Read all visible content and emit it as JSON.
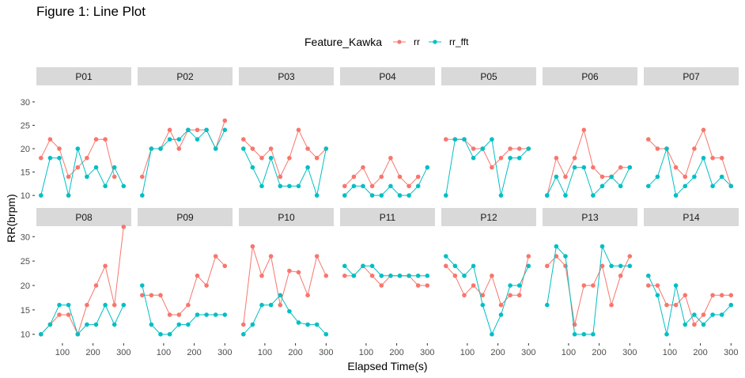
{
  "title": "Figure 1: Line Plot",
  "chart_data": {
    "type": "line",
    "title": "Figure 1: Line Plot",
    "xlabel": "Elapsed Time(s)",
    "ylabel": "RR(brpm)",
    "xlim": [
      15,
      325
    ],
    "ylim": [
      8.5,
      31.5
    ],
    "xticks": [
      100,
      200,
      300
    ],
    "yticks": [
      10,
      15,
      20,
      25,
      30
    ],
    "grid": false,
    "legend": {
      "title": "Feature_Kawka",
      "placement": "top",
      "entries": [
        {
          "name": "rr",
          "color": "#F8766D"
        },
        {
          "name": "rr_fft",
          "color": "#00BFC4"
        }
      ]
    },
    "x": [
      30,
      60,
      90,
      120,
      150,
      180,
      210,
      240,
      270,
      300
    ],
    "panels": [
      {
        "name": "P01",
        "series": [
          {
            "name": "rr",
            "values": [
              18,
              22,
              20,
              14,
              16,
              18,
              22,
              22,
              14,
              null
            ]
          },
          {
            "name": "rr_fft",
            "values": [
              10,
              18,
              18,
              10,
              20,
              14,
              16,
              12,
              16,
              12
            ]
          }
        ]
      },
      {
        "name": "P02",
        "series": [
          {
            "name": "rr",
            "values": [
              14,
              20,
              20,
              24,
              20,
              24,
              24,
              24,
              20,
              26
            ]
          },
          {
            "name": "rr_fft",
            "values": [
              10,
              20,
              20,
              22,
              22,
              24,
              22,
              24,
              20,
              24
            ]
          }
        ]
      },
      {
        "name": "P03",
        "series": [
          {
            "name": "rr",
            "values": [
              22,
              20,
              18,
              20,
              14,
              18,
              24,
              20,
              18,
              20
            ]
          },
          {
            "name": "rr_fft",
            "values": [
              20,
              16,
              12,
              18,
              12,
              12,
              12,
              16,
              10,
              20
            ]
          }
        ]
      },
      {
        "name": "P04",
        "series": [
          {
            "name": "rr",
            "values": [
              12,
              14,
              16,
              12,
              14,
              18,
              14,
              12,
              14,
              null
            ]
          },
          {
            "name": "rr_fft",
            "values": [
              10,
              12,
              12,
              10,
              10,
              12,
              10,
              10,
              12,
              16
            ]
          }
        ]
      },
      {
        "name": "P05",
        "series": [
          {
            "name": "rr",
            "values": [
              22,
              22,
              22,
              20,
              20,
              16,
              18,
              20,
              20,
              20
            ]
          },
          {
            "name": "rr_fft",
            "values": [
              10,
              22,
              22,
              18,
              20,
              22,
              10,
              18,
              18,
              20
            ]
          }
        ]
      },
      {
        "name": "P06",
        "series": [
          {
            "name": "rr",
            "values": [
              10,
              18,
              14,
              18,
              24,
              16,
              14,
              14,
              16,
              16
            ]
          },
          {
            "name": "rr_fft",
            "values": [
              10,
              14,
              10,
              16,
              16,
              10,
              12,
              14,
              12,
              16
            ]
          }
        ]
      },
      {
        "name": "P07",
        "series": [
          {
            "name": "rr",
            "values": [
              22,
              20,
              20,
              16,
              14,
              20,
              24,
              18,
              18,
              12
            ]
          },
          {
            "name": "rr_fft",
            "values": [
              12,
              14,
              20,
              10,
              12,
              14,
              18,
              12,
              14,
              12
            ]
          }
        ]
      },
      {
        "name": "P08",
        "series": [
          {
            "name": "rr",
            "values": [
              10,
              12,
              14,
              14,
              10,
              16,
              20,
              24,
              16,
              32
            ]
          },
          {
            "name": "rr_fft",
            "values": [
              10,
              12,
              16,
              16,
              10,
              12,
              12,
              16,
              12,
              16
            ]
          }
        ]
      },
      {
        "name": "P09",
        "series": [
          {
            "name": "rr",
            "values": [
              18,
              18,
              18,
              14,
              14,
              16,
              22,
              20,
              26,
              24
            ]
          },
          {
            "name": "rr_fft",
            "values": [
              20,
              12,
              10,
              10,
              12,
              12,
              14,
              14,
              14,
              14
            ]
          }
        ]
      },
      {
        "name": "P10",
        "series": [
          {
            "name": "rr",
            "values": [
              12,
              28,
              22,
              26,
              16,
              23,
              22.7,
              18,
              26,
              22
            ]
          },
          {
            "name": "rr_fft",
            "values": [
              10,
              12,
              16,
              16,
              18,
              14.7,
              12.4,
              12,
              12,
              10
            ]
          }
        ]
      },
      {
        "name": "P11",
        "series": [
          {
            "name": "rr",
            "values": [
              22,
              22,
              24,
              22,
              20,
              22,
              22,
              22,
              20,
              20
            ]
          },
          {
            "name": "rr_fft",
            "values": [
              24,
              22,
              24,
              24,
              22,
              22,
              22,
              22,
              22,
              22
            ]
          }
        ]
      },
      {
        "name": "P12",
        "series": [
          {
            "name": "rr",
            "values": [
              24,
              22,
              18,
              20,
              18,
              22,
              16,
              18,
              18,
              26
            ]
          },
          {
            "name": "rr_fft",
            "values": [
              26,
              24,
              22,
              24,
              16,
              10,
              14,
              20,
              20,
              24
            ]
          }
        ]
      },
      {
        "name": "P13",
        "series": [
          {
            "name": "rr",
            "values": [
              24,
              26,
              24,
              12,
              20,
              20,
              24,
              16,
              22,
              26
            ]
          },
          {
            "name": "rr_fft",
            "values": [
              16,
              28,
              26,
              10,
              10,
              10,
              28,
              24,
              24,
              24
            ]
          }
        ]
      },
      {
        "name": "P14",
        "series": [
          {
            "name": "rr",
            "values": [
              20,
              20,
              16,
              16,
              18,
              12,
              14,
              18,
              18,
              18
            ]
          },
          {
            "name": "rr_fft",
            "values": [
              22,
              18,
              10,
              20,
              12,
              14,
              12,
              14,
              14,
              16
            ]
          }
        ]
      }
    ]
  }
}
